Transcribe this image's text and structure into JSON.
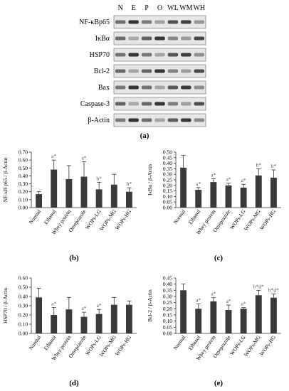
{
  "blot": {
    "lanes": [
      "N",
      "E",
      "P",
      "O",
      "WL",
      "WM",
      "WH"
    ],
    "rows": [
      "NF-κBp65",
      "IκBα",
      "HSP70",
      "Bcl-2",
      "Bax",
      "Caspase-3",
      "β-Actin"
    ],
    "caption": "(a)"
  },
  "chart_data": [
    {
      "type": "bar",
      "caption": "(b)",
      "ylabel": "NF-κB p65 / β-Actin",
      "ylim": [
        0,
        0.7
      ],
      "yticks": [
        "0.00",
        "0.10",
        "0.20",
        "0.30",
        "0.40",
        "0.50",
        "0.60",
        "0.70"
      ],
      "categories": [
        "Normal",
        "Ethanol",
        "Whey protein",
        "Omeprazole",
        "WOPs-LG",
        "WOPs-MG",
        "WOPs-HG"
      ],
      "values": [
        0.17,
        0.48,
        0.36,
        0.39,
        0.23,
        0.29,
        0.2
      ],
      "errors": [
        0.03,
        0.12,
        0.17,
        0.19,
        0.09,
        0.13,
        0.05
      ],
      "labels": [
        "",
        "a*",
        "",
        "a*",
        "b*",
        "",
        "b*"
      ],
      "grid": false
    },
    {
      "type": "bar",
      "caption": "(c)",
      "ylabel": "IκBα / β-Actin",
      "ylim": [
        0,
        0.5
      ],
      "yticks": [
        "0.00",
        "0.05",
        "0.10",
        "0.15",
        "0.20",
        "0.25",
        "0.30",
        "0.35",
        "0.40",
        "0.45",
        "0.50"
      ],
      "categories": [
        "Normal",
        "Ethanol",
        "Whey protein",
        "Omeprazole",
        "WOPs-LG",
        "WOPs-MG",
        "WOPs-HG"
      ],
      "values": [
        0.36,
        0.16,
        0.23,
        0.2,
        0.18,
        0.29,
        0.27
      ],
      "errors": [
        0.11,
        0.02,
        0.03,
        0.02,
        0.03,
        0.06,
        0.07
      ],
      "labels": [
        "",
        "a*",
        "a*",
        "a*",
        "a*",
        "b*",
        "b*"
      ],
      "grid": false
    },
    {
      "type": "bar",
      "caption": "(d)",
      "ylabel": "HSP70 / β-Actin",
      "ylim": [
        0,
        0.6
      ],
      "yticks": [
        "0.00",
        "0.10",
        "0.20",
        "0.30",
        "0.40",
        "0.50",
        "0.60"
      ],
      "categories": [
        "Normal",
        "Ethanol",
        "Whey protein",
        "Omeprazole",
        "WOPs-LG",
        "WOPs-MG",
        "WOPs-HG"
      ],
      "values": [
        0.39,
        0.2,
        0.26,
        0.18,
        0.21,
        0.31,
        0.31
      ],
      "errors": [
        0.1,
        0.08,
        0.13,
        0.05,
        0.05,
        0.08,
        0.04
      ],
      "labels": [
        "",
        "a*",
        "",
        "a*",
        "a*",
        "",
        ""
      ],
      "grid": false
    },
    {
      "type": "bar",
      "caption": "(e)",
      "ylabel": "Bcl-2 / β-Actin",
      "ylim": [
        0,
        0.45
      ],
      "yticks": [
        "0.00",
        "0.05",
        "0.10",
        "0.15",
        "0.20",
        "0.25",
        "0.30",
        "0.35",
        "0.40",
        "0.45"
      ],
      "categories": [
        "Normal",
        "Ethanol",
        "Whey protein",
        "Omeprazole",
        "WOPs-LG",
        "WOPs-MG",
        "WOPs-HG"
      ],
      "values": [
        0.35,
        0.2,
        0.26,
        0.19,
        0.2,
        0.31,
        0.29
      ],
      "errors": [
        0.05,
        0.04,
        0.03,
        0.04,
        0.01,
        0.04,
        0.03
      ],
      "labels": [
        "",
        "a*",
        "a*",
        "a*",
        "a*",
        "b*d*",
        "b*d*"
      ],
      "grid": false
    }
  ]
}
